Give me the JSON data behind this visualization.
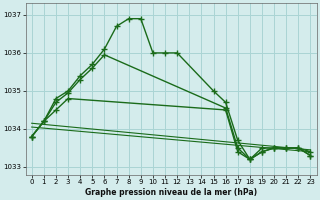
{
  "background_color": "#d4ecec",
  "grid_color": "#aad4d4",
  "line_color": "#1a6b1a",
  "xlabel": "Graphe pression niveau de la mer (hPa)",
  "ylim": [
    1032.8,
    1037.3
  ],
  "yticks": [
    1033,
    1034,
    1035,
    1036,
    1037
  ],
  "xlim": [
    -0.5,
    23.5
  ],
  "xticks": [
    0,
    1,
    2,
    3,
    4,
    5,
    6,
    7,
    8,
    9,
    10,
    11,
    12,
    13,
    14,
    15,
    16,
    17,
    18,
    19,
    20,
    21,
    22,
    23
  ],
  "series1_x": [
    0,
    1,
    2,
    3,
    4,
    5,
    6,
    7,
    8,
    9,
    10,
    11,
    12,
    15,
    16,
    17,
    18,
    19,
    20,
    21,
    22,
    23
  ],
  "series1_y": [
    1033.8,
    1034.2,
    1034.8,
    1035.0,
    1035.4,
    1035.7,
    1036.1,
    1036.7,
    1036.9,
    1036.9,
    1036.0,
    1036.0,
    1036.0,
    1035.0,
    1034.7,
    1033.7,
    1033.2,
    1033.5,
    1033.5,
    1033.5,
    1033.5,
    1033.4
  ],
  "series2_x": [
    0,
    1,
    2,
    3,
    16,
    17,
    18,
    19,
    20,
    21,
    22,
    23
  ],
  "series2_y": [
    1033.8,
    1034.2,
    1034.5,
    1034.8,
    1034.5,
    1033.4,
    1033.2,
    1033.4,
    1033.5,
    1033.5,
    1033.5,
    1033.3
  ],
  "series3_x": [
    0,
    1,
    2,
    3,
    4,
    5,
    6,
    16,
    17,
    18,
    19,
    20,
    21,
    22,
    23
  ],
  "series3_y": [
    1033.8,
    1034.2,
    1034.7,
    1034.95,
    1035.3,
    1035.6,
    1035.95,
    1034.55,
    1033.5,
    1033.2,
    1033.4,
    1033.5,
    1033.5,
    1033.5,
    1033.3
  ]
}
